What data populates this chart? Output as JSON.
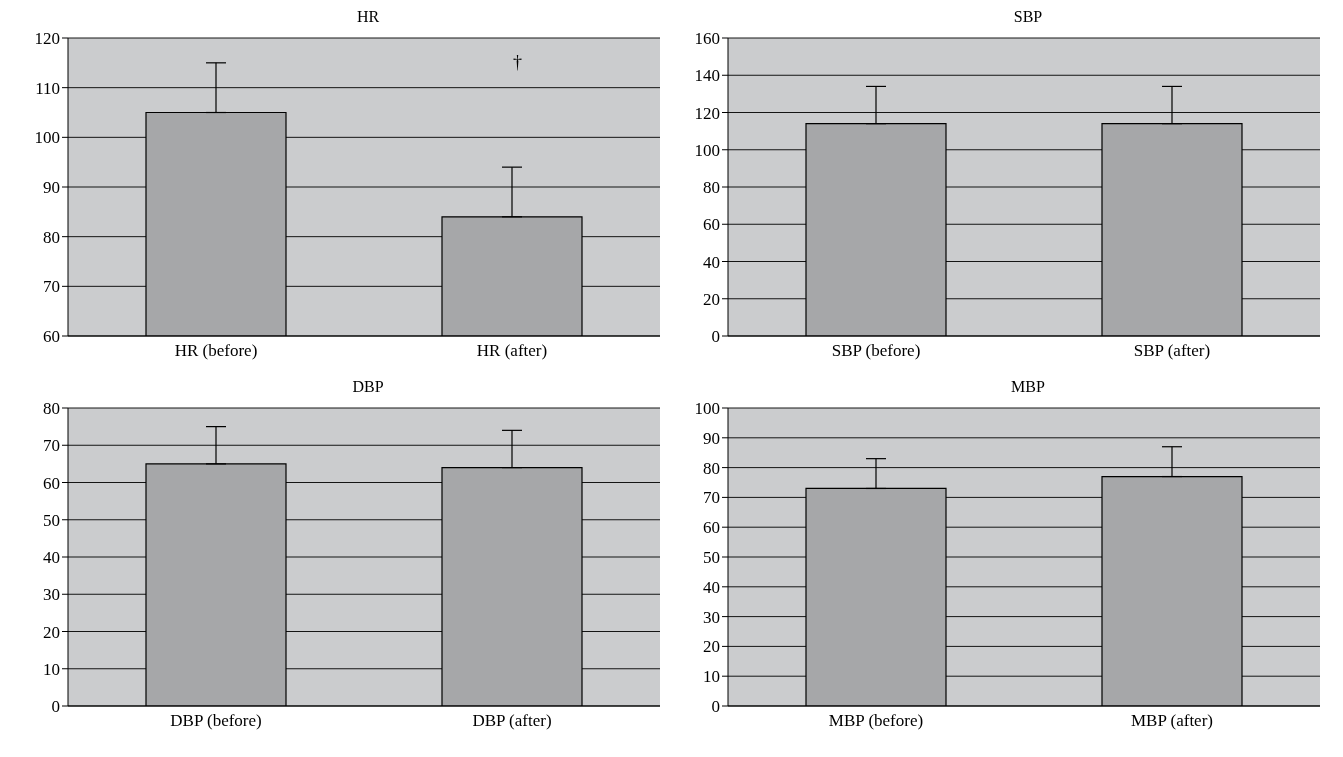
{
  "chart_data": [
    {
      "type": "bar",
      "title": "HR",
      "categories": [
        "HR (before)",
        "HR (after)"
      ],
      "values": [
        105,
        84
      ],
      "errors": [
        [
          105,
          115
        ],
        [
          84,
          94
        ]
      ],
      "color": "#a6a7a9",
      "ylim": [
        60,
        120
      ],
      "yticks": [
        60,
        70,
        80,
        90,
        100,
        110,
        120
      ],
      "grid": "y",
      "annotations": [
        "†"
      ]
    },
    {
      "type": "bar",
      "title": "SBP",
      "categories": [
        "SBP (before)",
        "SBP (after)"
      ],
      "values": [
        114,
        114
      ],
      "errors": [
        [
          114,
          134
        ],
        [
          114,
          134
        ]
      ],
      "color": "#a6a7a9",
      "ylim": [
        0,
        160
      ],
      "yticks": [
        0,
        20,
        40,
        60,
        80,
        100,
        120,
        140,
        160
      ],
      "grid": "y"
    },
    {
      "type": "bar",
      "title": "DBP",
      "categories": [
        "DBP (before)",
        "DBP (after)"
      ],
      "values": [
        65,
        64
      ],
      "errors": [
        [
          65,
          75
        ],
        [
          64,
          74
        ]
      ],
      "color": "#a6a7a9",
      "ylim": [
        0,
        80
      ],
      "yticks": [
        0,
        10,
        20,
        30,
        40,
        50,
        60,
        70,
        80
      ],
      "grid": "y"
    },
    {
      "type": "bar",
      "title": "MBP",
      "categories": [
        "MBP (before)",
        "MBP (after)"
      ],
      "values": [
        73,
        77
      ],
      "errors": [
        [
          73,
          83
        ],
        [
          77,
          87
        ]
      ],
      "color": "#a6a7a9",
      "ylim": [
        0,
        100
      ],
      "yticks": [
        0,
        10,
        20,
        30,
        40,
        50,
        60,
        70,
        80,
        90,
        100
      ],
      "grid": "y"
    }
  ]
}
